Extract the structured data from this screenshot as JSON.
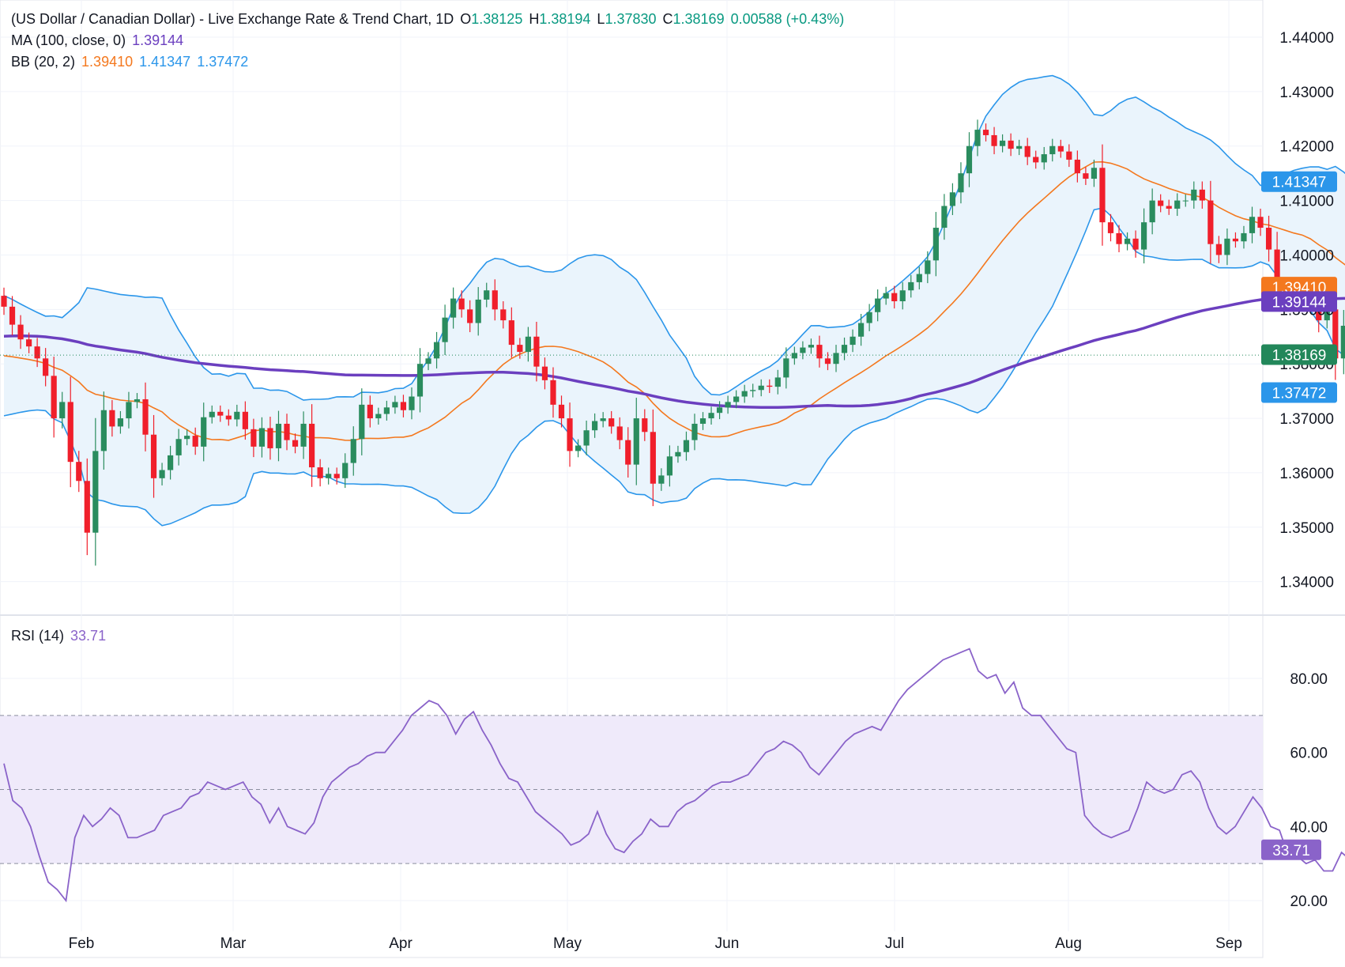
{
  "legend": {
    "title": "(US Dollar / Canadian Dollar) - Live Exchange Rate & Trend Chart, 1D",
    "open_label": "O",
    "open": "1.38125",
    "high_label": "H",
    "high": "1.38194",
    "low_label": "L",
    "low": "1.37830",
    "close_label": "C",
    "close": "1.38169",
    "change": "0.00588 (+0.43%)",
    "ma_label": "MA (100, close, 0)",
    "ma_value": "1.39144",
    "bb_label": "BB (20, 2)",
    "bb_basis": "1.39410",
    "bb_upper": "1.41347",
    "bb_lower": "1.37472",
    "rsi_label": "RSI (14)",
    "rsi_value": "33.71"
  },
  "colors": {
    "up": "#2a8c5e",
    "down": "#f01f2b",
    "ma": "#6b3fbf",
    "bb_basis": "#f4781e",
    "bb_band": "#2b96ea",
    "bb_fill": "#eaf4fc",
    "rsi": "#8a63c9",
    "rsi_fill": "#efeafa",
    "last": "#22875a"
  },
  "chart_data": [
    {
      "type": "candlestick",
      "yaxis": {
        "ticks": [
          "1.34000",
          "1.35000",
          "1.36000",
          "1.37000",
          "1.38000",
          "1.39000",
          "1.40000",
          "1.41000",
          "1.42000",
          "1.43000",
          "1.44000"
        ],
        "ylim": [
          1.3385,
          1.4445
        ]
      },
      "xaxis": {
        "ticks": [
          "Feb",
          "Mar",
          "Apr",
          "May",
          "Jun",
          "Jul",
          "Aug",
          "Sep"
        ]
      },
      "price_labels": [
        {
          "text": "1.41347",
          "value": 1.41347,
          "color": "#2b96ea"
        },
        {
          "text": "1.39410",
          "value": 1.3941,
          "color": "#f4781e"
        },
        {
          "text": "1.39144",
          "value": 1.39144,
          "color": "#6b3fbf"
        },
        {
          "text": "1.38169",
          "value": 1.38169,
          "color": "#22875a"
        },
        {
          "text": "1.37472",
          "value": 1.37472,
          "color": "#2b96ea"
        }
      ],
      "close": [
        1.3905,
        1.3872,
        1.3845,
        1.3832,
        1.381,
        1.3778,
        1.37,
        1.373,
        1.362,
        1.3585,
        1.349,
        1.364,
        1.3715,
        1.3685,
        1.37,
        1.373,
        1.3735,
        1.367,
        1.359,
        1.3605,
        1.3632,
        1.3662,
        1.3668,
        1.3648,
        1.3702,
        1.3712,
        1.3705,
        1.3698,
        1.3712,
        1.368,
        1.3648,
        1.3682,
        1.3645,
        1.369,
        1.366,
        1.3648,
        1.369,
        1.361,
        1.359,
        1.3598,
        1.359,
        1.3618,
        1.3662,
        1.3725,
        1.37,
        1.3708,
        1.372,
        1.373,
        1.3715,
        1.374,
        1.38,
        1.381,
        1.384,
        1.3885,
        1.392,
        1.39,
        1.3875,
        1.3918,
        1.3935,
        1.39,
        1.388,
        1.3835,
        1.3822,
        1.385,
        1.3795,
        1.377,
        1.3725,
        1.37,
        1.364,
        1.365,
        1.3678,
        1.3695,
        1.37,
        1.3685,
        1.366,
        1.3615,
        1.37,
        1.3675,
        1.358,
        1.3595,
        1.363,
        1.3638,
        1.366,
        1.369,
        1.37,
        1.371,
        1.372,
        1.373,
        1.374,
        1.375,
        1.3752,
        1.376,
        1.3758,
        1.3775,
        1.381,
        1.382,
        1.383,
        1.3835,
        1.381,
        1.38,
        1.382,
        1.3835,
        1.385,
        1.3875,
        1.3895,
        1.392,
        1.393,
        1.3915,
        1.3935,
        1.395,
        1.3965,
        1.399,
        1.405,
        1.409,
        1.4115,
        1.415,
        1.42,
        1.423,
        1.422,
        1.42,
        1.421,
        1.4195,
        1.42,
        1.418,
        1.417,
        1.4185,
        1.42,
        1.419,
        1.4175,
        1.415,
        1.414,
        1.416,
        1.406,
        1.404,
        1.402,
        1.403,
        1.401,
        1.406,
        1.41,
        1.409,
        1.4085,
        1.41,
        1.41,
        1.412,
        1.41,
        1.402,
        1.4,
        1.403,
        1.4025,
        1.404,
        1.407,
        1.405,
        1.401,
        1.394,
        1.3925,
        1.393,
        1.394,
        1.392,
        1.388,
        1.39,
        1.381,
        1.387,
        1.388,
        1.3805,
        1.375,
        1.3816
      ]
    },
    {
      "type": "line",
      "yaxis": {
        "ticks": [
          "20.00",
          "40.00",
          "60.00",
          "80.00"
        ],
        "ylim": [
          14,
          92
        ],
        "bands": [
          30,
          50,
          70
        ]
      },
      "values": [
        57,
        47,
        45,
        40,
        32,
        25,
        23,
        20,
        37,
        43,
        40,
        42,
        45,
        43,
        37,
        37,
        38,
        39,
        43,
        44,
        45,
        48,
        49,
        52,
        51,
        50,
        51,
        52,
        48,
        46,
        41,
        45,
        40,
        39,
        38,
        41,
        48,
        52,
        54,
        56,
        57,
        59,
        60,
        60,
        63,
        66,
        70,
        72,
        74,
        73,
        70,
        65,
        69,
        71,
        66,
        62,
        57,
        53,
        52,
        48,
        44,
        42,
        40,
        38,
        35,
        36,
        38,
        44,
        38,
        34,
        33,
        36,
        38,
        42,
        40,
        40,
        44,
        46,
        47,
        49,
        51,
        52,
        52,
        53,
        54,
        57,
        60,
        61,
        63,
        62,
        60,
        56,
        54,
        57,
        60,
        63,
        65,
        66,
        67,
        66,
        70,
        74,
        77,
        79,
        81,
        83,
        85,
        86,
        87,
        88,
        82,
        80,
        81,
        76,
        79,
        72,
        70,
        70,
        67,
        64,
        61,
        60,
        43,
        40,
        38,
        37,
        38,
        39,
        45,
        52,
        50,
        49,
        50,
        54,
        55,
        52,
        45,
        40,
        38,
        40,
        44,
        48,
        45,
        40,
        39,
        32,
        32,
        30,
        31,
        28,
        28,
        33,
        31,
        25,
        23,
        33.71
      ]
    }
  ]
}
